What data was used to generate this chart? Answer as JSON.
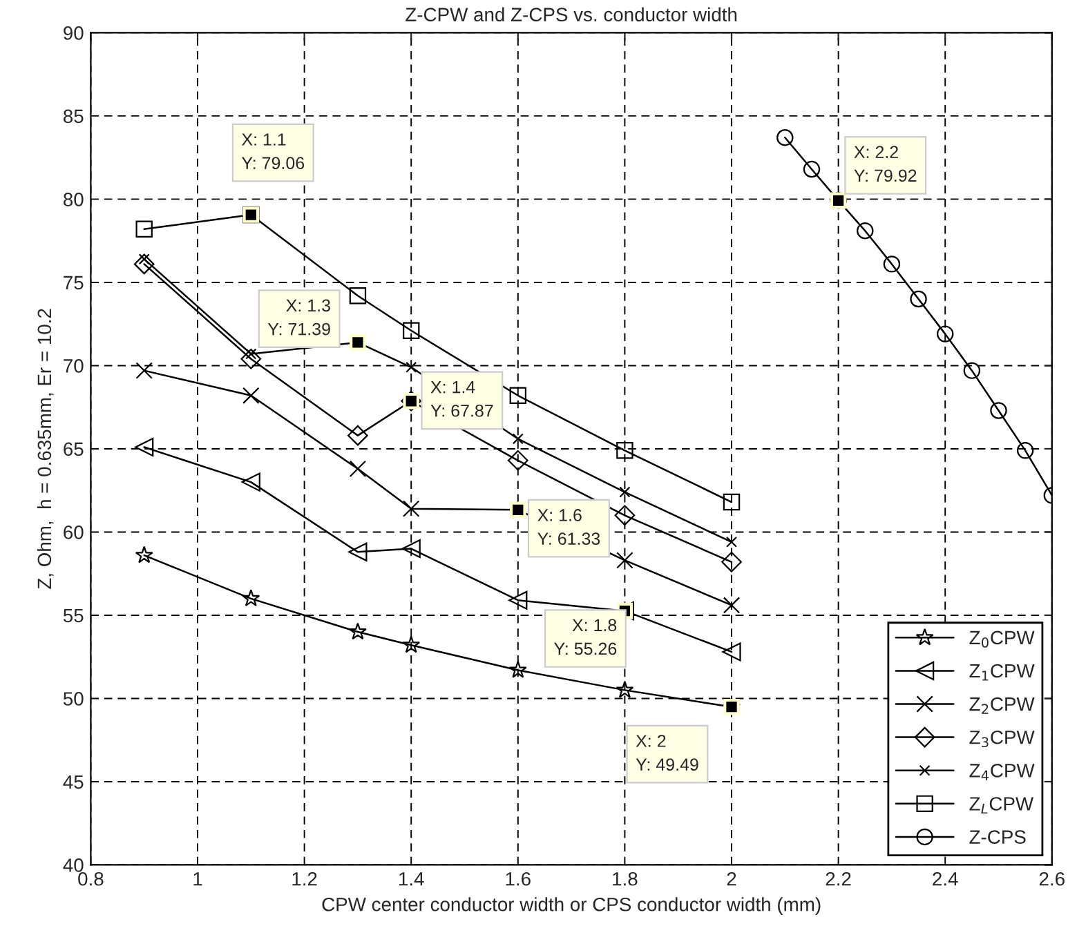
{
  "chart_data": {
    "type": "line",
    "title": "Z-CPW and Z-CPS vs. conductor width",
    "xlabel": "CPW center conductor width or CPS conductor width (mm)",
    "ylabel": "Z, Ohm,  h = 0.635mm, Er = 10.2",
    "xlim": [
      0.8,
      2.6
    ],
    "xticks": [
      0.8,
      1,
      1.2,
      1.4,
      1.6,
      1.8,
      2,
      2.2,
      2.4,
      2.6
    ],
    "ylim": [
      40,
      90
    ],
    "yticks": [
      40,
      45,
      50,
      55,
      60,
      65,
      70,
      75,
      80,
      85,
      90
    ],
    "grid": true,
    "legend": "bottom right",
    "line_style": "solid",
    "series": [
      {
        "name": "Z$_{0}$CPW",
        "color": "#000000",
        "marker": "star",
        "x": [
          0.9,
          1.1,
          1.3,
          1.4,
          1.6,
          1.8,
          2.0
        ],
        "values": [
          58.6,
          56.0,
          54.0,
          53.2,
          51.7,
          50.5,
          49.49
        ]
      },
      {
        "name": "Z$_{1}$CPW",
        "color": "#000000",
        "marker": "triangle",
        "x": [
          0.9,
          1.1,
          1.3,
          1.4,
          1.6,
          1.8,
          2.0
        ],
        "values": [
          65.1,
          63.0,
          58.8,
          59.0,
          55.9,
          55.26,
          52.8
        ]
      },
      {
        "name": "Z$_{2}$CPW",
        "color": "#000000",
        "marker": "cross",
        "x": [
          0.9,
          1.1,
          1.3,
          1.4,
          1.6,
          1.8,
          2.0
        ],
        "values": [
          69.7,
          68.2,
          63.8,
          61.4,
          61.33,
          58.3,
          55.6
        ]
      },
      {
        "name": "Z$_{3}$CPW",
        "color": "#000000",
        "marker": "diamond",
        "x": [
          0.9,
          1.1,
          1.3,
          1.4,
          1.6,
          1.8,
          2.0
        ],
        "values": [
          76.1,
          70.4,
          65.8,
          67.87,
          64.3,
          61.0,
          58.2
        ]
      },
      {
        "name": "Z$_{4}$CPW",
        "color": "#000000",
        "marker": "cross",
        "x": [
          0.9,
          1.1,
          1.3,
          1.4,
          1.6,
          1.8,
          2.0
        ],
        "values": [
          76.4,
          70.7,
          71.39,
          69.9,
          65.6,
          62.4,
          59.4
        ]
      },
      {
        "name": "Z$_{L}$CPW",
        "color": "#000000",
        "marker": "square",
        "x": [
          0.9,
          1.1,
          1.3,
          1.4,
          1.6,
          1.8,
          2.0
        ],
        "values": [
          78.2,
          79.06,
          74.2,
          72.1,
          68.2,
          64.9,
          61.8
        ]
      },
      {
        "name": "Z-CPS",
        "color": "#000000",
        "marker": "circle",
        "x": [
          2.1,
          2.15,
          2.2,
          2.25,
          2.3,
          2.35,
          2.4,
          2.45,
          2.5,
          2.55,
          2.6
        ],
        "values": [
          83.7,
          81.8,
          79.92,
          78.1,
          76.1,
          74.0,
          71.9,
          69.7,
          67.3,
          64.9,
          62.2
        ]
      }
    ],
    "annotations": [
      {
        "text": "X: 1.1\nY: 79.06",
        "x": 1.1,
        "y": 79.06
      },
      {
        "text": "X: 1.3\nY: 71.39",
        "x": 1.3,
        "y": 71.39
      },
      {
        "text": "X: 1.4\nY: 67.87",
        "x": 1.4,
        "y": 67.87
      },
      {
        "text": "X: 1.6\nY: 61.33",
        "x": 1.6,
        "y": 61.33
      },
      {
        "text": "X: 1.8\nY: 55.26",
        "x": 1.8,
        "y": 55.26
      },
      {
        "text": "X: 2\nY: 49.49",
        "x": 2,
        "y": 49.49
      },
      {
        "text": "X: 2.2\nY: 79.92",
        "x": 2.2,
        "y": 79.92
      }
    ]
  }
}
